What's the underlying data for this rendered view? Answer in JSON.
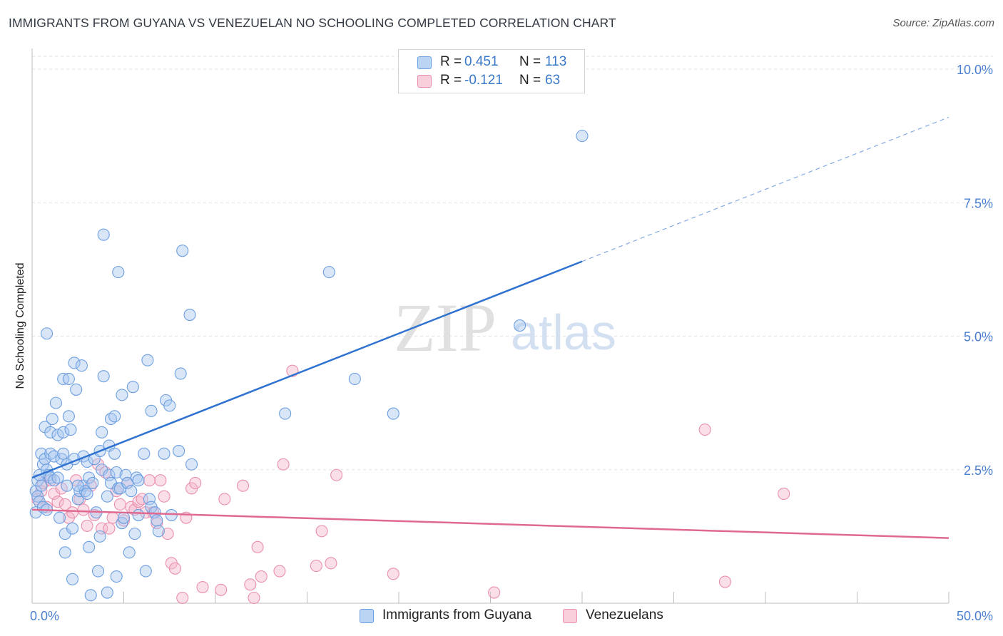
{
  "title": "IMMIGRANTS FROM GUYANA VS VENEZUELAN NO SCHOOLING COMPLETED CORRELATION CHART",
  "source": "Source: ZipAtlas.com",
  "watermark": {
    "zip": "ZIP",
    "atlas": "atlas"
  },
  "colors": {
    "blue_fill": "#a9c8ef",
    "blue_stroke": "#6d9fe0",
    "blue_line": "#2f72d0",
    "pink_fill": "#f5b8cb",
    "pink_stroke": "#ea8fae",
    "pink_line": "#e0698f",
    "tick_label": "#4a7fd0",
    "grid": "#e2e2e2"
  },
  "legend_top": {
    "rows": [
      {
        "r_label": "R =",
        "r_value": "0.451",
        "n_label": "N =",
        "n_value": "113"
      },
      {
        "r_label": "R =",
        "r_value": "-0.121",
        "n_label": "N =",
        "n_value": "63"
      }
    ]
  },
  "legend_bottom": {
    "items": [
      {
        "label": "Immigrants from Guyana"
      },
      {
        "label": "Venezuelans"
      }
    ]
  },
  "chart_data": {
    "type": "scatter",
    "title": "IMMIGRANTS FROM GUYANA VS VENEZUELAN NO SCHOOLING COMPLETED CORRELATION CHART",
    "xlabel": "",
    "ylabel": "No Schooling Completed",
    "xlim": [
      0,
      50
    ],
    "ylim": [
      0,
      10.5
    ],
    "x_tick_labels": [
      "0.0%",
      "50.0%"
    ],
    "y_ticks": [
      2.5,
      5.0,
      7.5,
      10.0
    ],
    "y_tick_labels": [
      "2.5%",
      "5.0%",
      "7.5%",
      "10.0%"
    ],
    "grid": true,
    "legend_position": "bottom",
    "series": [
      {
        "name": "Immigrants from Guyana",
        "color": "#6d9fe0",
        "trend": {
          "x": [
            0,
            30
          ],
          "y": [
            2.35,
            6.4
          ],
          "dashed_extension_to": [
            50,
            9.1
          ]
        },
        "points": [
          [
            0.2,
            1.7
          ],
          [
            0.2,
            2.1
          ],
          [
            0.3,
            2.3
          ],
          [
            0.3,
            2.0
          ],
          [
            0.4,
            2.4
          ],
          [
            0.4,
            1.9
          ],
          [
            0.5,
            2.2
          ],
          [
            0.5,
            2.8
          ],
          [
            0.6,
            1.8
          ],
          [
            0.6,
            2.6
          ],
          [
            0.7,
            2.7
          ],
          [
            0.7,
            3.3
          ],
          [
            0.8,
            2.5
          ],
          [
            0.8,
            1.75
          ],
          [
            0.8,
            5.05
          ],
          [
            0.9,
            2.4
          ],
          [
            1.0,
            3.2
          ],
          [
            1.0,
            2.8
          ],
          [
            1.0,
            2.35
          ],
          [
            1.1,
            3.45
          ],
          [
            1.2,
            2.3
          ],
          [
            1.2,
            2.75
          ],
          [
            1.3,
            3.75
          ],
          [
            1.4,
            3.15
          ],
          [
            1.4,
            2.35
          ],
          [
            1.5,
            1.6
          ],
          [
            1.6,
            2.7
          ],
          [
            1.7,
            4.2
          ],
          [
            1.7,
            2.8
          ],
          [
            1.7,
            3.2
          ],
          [
            1.8,
            0.95
          ],
          [
            1.8,
            1.3
          ],
          [
            1.9,
            2.6
          ],
          [
            1.9,
            2.2
          ],
          [
            2.0,
            3.5
          ],
          [
            2.0,
            4.2
          ],
          [
            2.1,
            3.25
          ],
          [
            2.2,
            1.4
          ],
          [
            2.2,
            0.45
          ],
          [
            2.3,
            4.5
          ],
          [
            2.3,
            2.7
          ],
          [
            2.4,
            4.0
          ],
          [
            2.5,
            1.95
          ],
          [
            2.6,
            2.1
          ],
          [
            2.7,
            4.45
          ],
          [
            2.8,
            2.2
          ],
          [
            2.8,
            2.75
          ],
          [
            2.9,
            2.1
          ],
          [
            3.0,
            2.05
          ],
          [
            3.0,
            2.65
          ],
          [
            3.1,
            1.05
          ],
          [
            3.1,
            2.35
          ],
          [
            3.2,
            0.15
          ],
          [
            3.3,
            2.25
          ],
          [
            3.4,
            2.7
          ],
          [
            3.5,
            1.7
          ],
          [
            3.6,
            0.6
          ],
          [
            3.7,
            2.85
          ],
          [
            3.8,
            3.2
          ],
          [
            3.8,
            2.5
          ],
          [
            3.9,
            4.25
          ],
          [
            3.9,
            6.9
          ],
          [
            4.1,
            2.0
          ],
          [
            4.1,
            0.2
          ],
          [
            4.2,
            2.4
          ],
          [
            4.2,
            2.95
          ],
          [
            4.3,
            2.25
          ],
          [
            4.3,
            3.45
          ],
          [
            4.5,
            3.5
          ],
          [
            4.5,
            2.8
          ],
          [
            4.6,
            2.45
          ],
          [
            4.6,
            0.5
          ],
          [
            4.7,
            6.2
          ],
          [
            4.7,
            2.15
          ],
          [
            4.8,
            2.15
          ],
          [
            4.9,
            1.5
          ],
          [
            4.9,
            3.9
          ],
          [
            5.0,
            1.6
          ],
          [
            5.1,
            2.4
          ],
          [
            5.2,
            2.25
          ],
          [
            5.3,
            0.95
          ],
          [
            5.4,
            2.1
          ],
          [
            5.5,
            4.05
          ],
          [
            5.6,
            1.3
          ],
          [
            5.7,
            2.35
          ],
          [
            5.8,
            1.65
          ],
          [
            5.8,
            2.3
          ],
          [
            6.1,
            2.8
          ],
          [
            6.2,
            0.6
          ],
          [
            6.3,
            4.55
          ],
          [
            6.4,
            1.95
          ],
          [
            6.5,
            1.8
          ],
          [
            6.5,
            3.6
          ],
          [
            6.7,
            1.7
          ],
          [
            6.8,
            1.55
          ],
          [
            6.9,
            1.35
          ],
          [
            7.2,
            2.8
          ],
          [
            7.3,
            3.8
          ],
          [
            7.5,
            3.7
          ],
          [
            7.6,
            1.65
          ],
          [
            8.0,
            2.85
          ],
          [
            8.1,
            4.3
          ],
          [
            8.2,
            6.6
          ],
          [
            8.6,
            5.4
          ],
          [
            8.7,
            2.6
          ],
          [
            13.8,
            3.55
          ],
          [
            16.2,
            6.2
          ],
          [
            17.6,
            4.2
          ],
          [
            19.7,
            3.55
          ],
          [
            26.6,
            5.2
          ],
          [
            30.0,
            8.75
          ],
          [
            3.7,
            1.25
          ],
          [
            2.5,
            2.2
          ]
        ]
      },
      {
        "name": "Venezuelans",
        "color": "#ea8fae",
        "trend": {
          "x": [
            0,
            50
          ],
          "y": [
            1.75,
            1.22
          ]
        },
        "points": [
          [
            0.3,
            1.95
          ],
          [
            0.5,
            2.1
          ],
          [
            0.6,
            2.25
          ],
          [
            0.8,
            1.8
          ],
          [
            1.0,
            2.3
          ],
          [
            1.2,
            2.05
          ],
          [
            1.4,
            1.9
          ],
          [
            1.6,
            2.15
          ],
          [
            1.8,
            1.85
          ],
          [
            2.0,
            1.6
          ],
          [
            2.2,
            1.7
          ],
          [
            2.4,
            2.3
          ],
          [
            2.6,
            1.95
          ],
          [
            2.8,
            1.75
          ],
          [
            3.0,
            1.45
          ],
          [
            3.2,
            2.2
          ],
          [
            3.4,
            1.65
          ],
          [
            3.6,
            2.6
          ],
          [
            3.8,
            1.4
          ],
          [
            4.0,
            2.45
          ],
          [
            4.2,
            1.4
          ],
          [
            4.4,
            1.6
          ],
          [
            4.6,
            2.1
          ],
          [
            4.8,
            1.85
          ],
          [
            5.0,
            1.55
          ],
          [
            5.2,
            2.25
          ],
          [
            5.4,
            1.8
          ],
          [
            5.6,
            1.75
          ],
          [
            5.8,
            1.9
          ],
          [
            6.0,
            1.95
          ],
          [
            6.2,
            1.7
          ],
          [
            6.4,
            2.3
          ],
          [
            6.6,
            1.7
          ],
          [
            6.8,
            1.5
          ],
          [
            7.0,
            2.3
          ],
          [
            7.2,
            2.0
          ],
          [
            7.4,
            1.3
          ],
          [
            7.6,
            0.75
          ],
          [
            7.8,
            0.65
          ],
          [
            8.2,
            0.1
          ],
          [
            8.4,
            1.6
          ],
          [
            8.7,
            2.15
          ],
          [
            8.9,
            2.25
          ],
          [
            9.3,
            0.3
          ],
          [
            10.3,
            0.25
          ],
          [
            10.5,
            1.95
          ],
          [
            11.5,
            2.2
          ],
          [
            11.9,
            0.35
          ],
          [
            12.1,
            0.1
          ],
          [
            12.3,
            1.05
          ],
          [
            12.5,
            0.5
          ],
          [
            13.5,
            0.6
          ],
          [
            13.7,
            2.6
          ],
          [
            14.2,
            4.35
          ],
          [
            15.5,
            0.7
          ],
          [
            15.8,
            1.35
          ],
          [
            16.3,
            0.75
          ],
          [
            16.6,
            2.4
          ],
          [
            19.7,
            0.55
          ],
          [
            25.2,
            0.2
          ],
          [
            36.7,
            3.25
          ],
          [
            37.8,
            0.4
          ],
          [
            41.0,
            2.05
          ]
        ]
      }
    ]
  }
}
